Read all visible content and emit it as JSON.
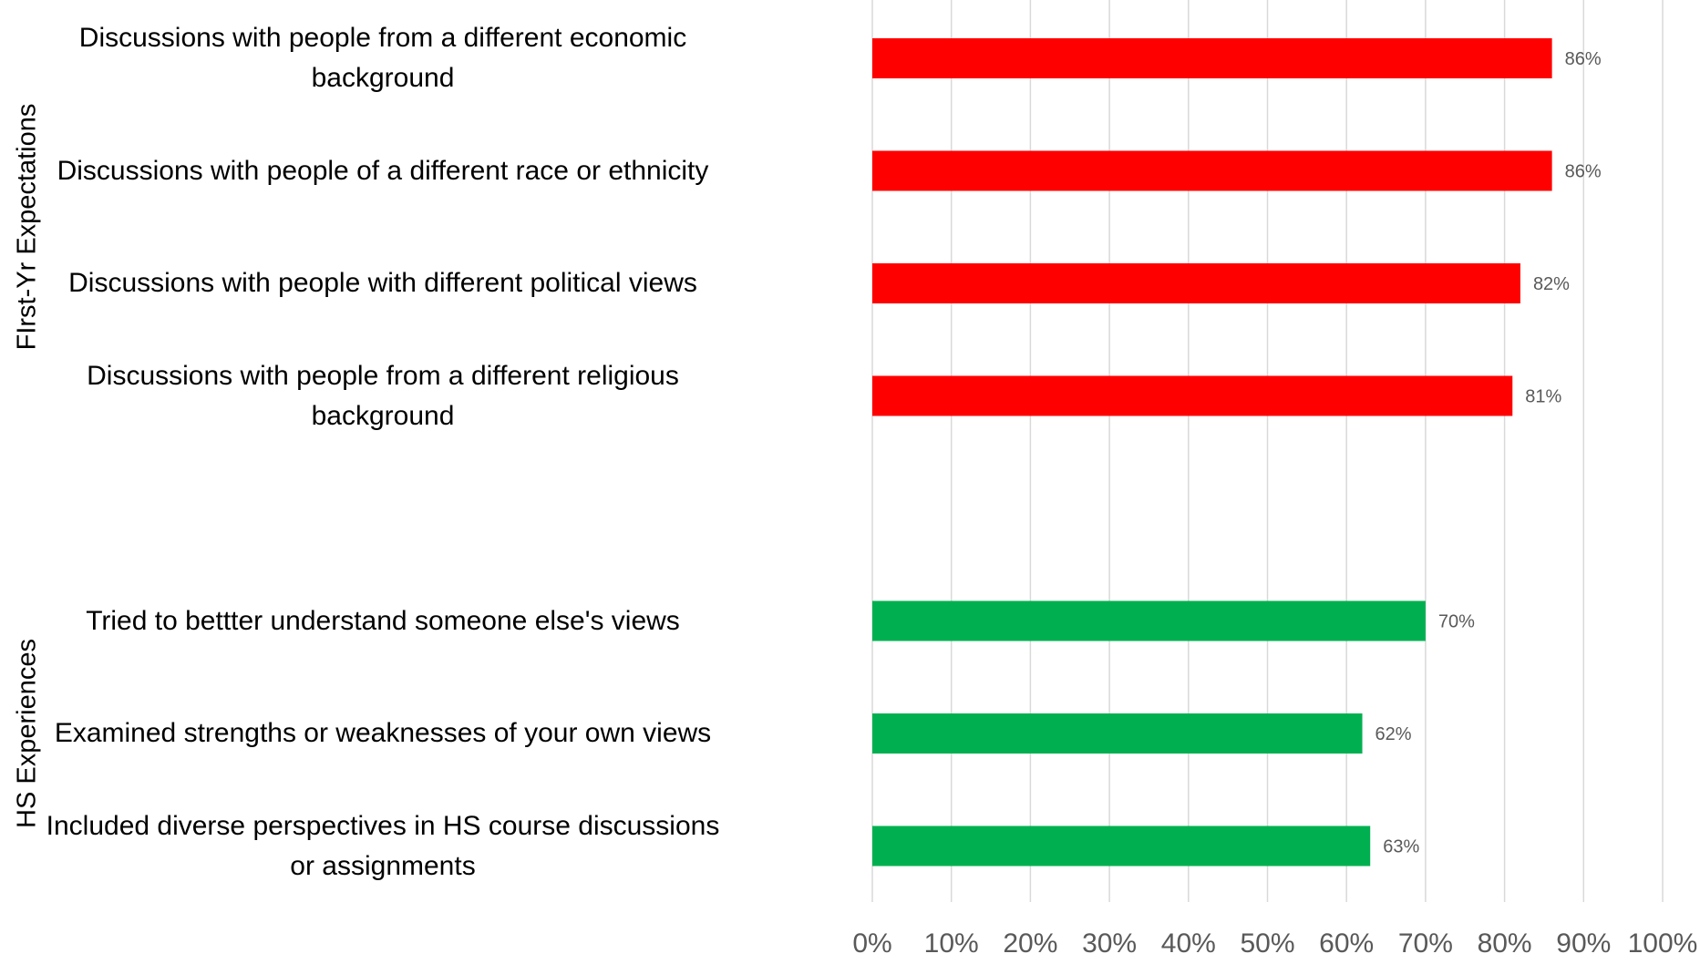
{
  "chart_data": {
    "type": "bar",
    "orientation": "horizontal",
    "groups": [
      {
        "name": "FIrst-Yr Expectations",
        "color": "#ff0000",
        "categories": [
          "Discussions with people from a different economic background",
          "Discussions with people of a different race or ethnicity",
          "Discussions with people with different political views",
          "Discussions with people from a different religious background"
        ],
        "values": [
          86,
          86,
          82,
          81
        ],
        "data_labels": [
          "86%",
          "86%",
          "82%",
          "81%"
        ]
      },
      {
        "name": "HS Experiences",
        "color": "#00b050",
        "categories": [
          "Tried to bettter understand someone else's views",
          "Examined strengths or weaknesses of your own views",
          "Included diverse perspectives in HS course discussions or assignments"
        ],
        "values": [
          70,
          62,
          63
        ],
        "data_labels": [
          "70%",
          "62%",
          "63%"
        ]
      }
    ],
    "xlim": [
      0,
      100
    ],
    "xticks": [
      "0%",
      "10%",
      "20%",
      "30%",
      "40%",
      "50%",
      "60%",
      "70%",
      "80%",
      "90%",
      "100%"
    ],
    "grid": true,
    "legend": "none",
    "title": "",
    "xlabel": "",
    "ylabel": ""
  }
}
